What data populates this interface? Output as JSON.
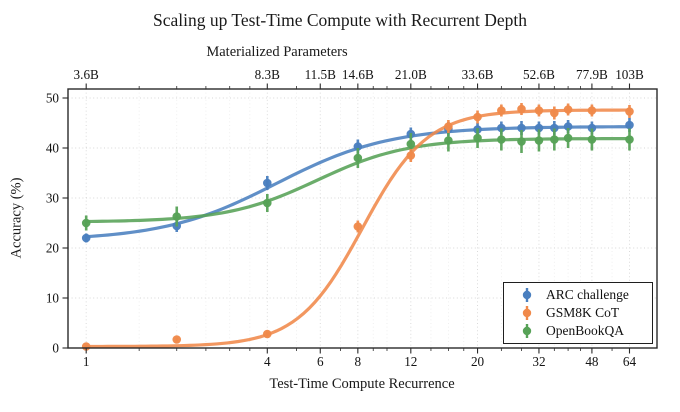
{
  "chart_data": {
    "type": "line",
    "title": "Scaling up Test-Time Compute with Recurrent Depth",
    "xlabel": "Test-Time Compute Recurrence",
    "ylabel": "Accuracy (%)",
    "x_scale": "log2",
    "xlim": [
      0.87,
      79
    ],
    "ylim": [
      0,
      51.8
    ],
    "grid": "dotted",
    "y_ticks": [
      0,
      10,
      20,
      30,
      40,
      50
    ],
    "y_tick_labels": [
      "0",
      "10",
      "20",
      "30",
      "40",
      "50"
    ],
    "x_major_ticks": [
      1,
      4,
      6,
      8,
      12,
      20,
      32,
      48,
      64
    ],
    "x_major_tick_labels": [
      "1",
      "4",
      "6",
      "8",
      "12",
      "20",
      "32",
      "48",
      "64"
    ],
    "x_minor_ticks": [
      1.5,
      2,
      2.5,
      3,
      3.5,
      5,
      7,
      9,
      10,
      14,
      16,
      18,
      24,
      28,
      36,
      40,
      44,
      56
    ],
    "top_axis": {
      "label": "Materialized Parameters",
      "tick_positions": [
        1,
        4,
        6,
        8,
        12,
        20,
        32,
        48,
        64
      ],
      "tick_labels": [
        "3.6B",
        "8.3B",
        "11.5B",
        "14.6B",
        "21.0B",
        "33.6B",
        "52.6B",
        "77.9B",
        "103B"
      ]
    },
    "x": [
      1,
      2,
      4,
      8,
      12,
      16,
      20,
      24,
      28,
      32,
      36,
      40,
      48,
      64
    ],
    "series": [
      {
        "name": "ARC challenge",
        "color": "#4a7fbf",
        "values": [
          22.0,
          24.4,
          33.0,
          40.3,
          42.8,
          43.8,
          43.7,
          44.0,
          44.0,
          44.0,
          44.0,
          44.3,
          44.0,
          44.6
        ],
        "errors": [
          0.9,
          1.2,
          1.4,
          1.4,
          1.3,
          1.4,
          1.3,
          1.3,
          1.4,
          1.3,
          1.4,
          1.3,
          1.3,
          1.4
        ],
        "fit": {
          "base": 21.5,
          "plateau": 44.3,
          "k": 1.6,
          "t0": 2.1
        }
      },
      {
        "name": "GSM8K CoT",
        "color": "#f0894a",
        "values": [
          0.3,
          1.7,
          2.8,
          24.3,
          38.5,
          44.3,
          46.2,
          47.5,
          47.8,
          47.5,
          47.0,
          47.7,
          47.5,
          47.3
        ],
        "errors": [
          0.3,
          0.4,
          0.5,
          1.2,
          1.3,
          1.3,
          1.3,
          1.2,
          1.2,
          1.2,
          1.3,
          1.2,
          1.2,
          1.3
        ],
        "fit": {
          "base": 0.3,
          "plateau": 47.6,
          "k": 2.8,
          "t0": 3.05
        }
      },
      {
        "name": "OpenBookQA",
        "color": "#57a257",
        "values": [
          25.0,
          26.3,
          29.0,
          38.0,
          40.8,
          41.5,
          42.0,
          41.7,
          41.3,
          41.5,
          41.7,
          42.0,
          41.7,
          41.7
        ],
        "errors": [
          1.5,
          2.0,
          1.8,
          2.0,
          2.2,
          2.2,
          2.0,
          2.2,
          2.3,
          2.2,
          2.2,
          2.0,
          2.2,
          2.2
        ],
        "fit": {
          "base": 25.2,
          "plateau": 41.9,
          "k": 2.0,
          "t0": 2.55
        }
      }
    ],
    "legend": {
      "position": "lower right",
      "entries": [
        "ARC challenge",
        "GSM8K CoT",
        "OpenBookQA"
      ]
    },
    "colors": {
      "grid_major": "#d7d7d7",
      "grid_minor": "#ebebeb",
      "spine": "#2a2a2a",
      "text": "#141414"
    }
  }
}
